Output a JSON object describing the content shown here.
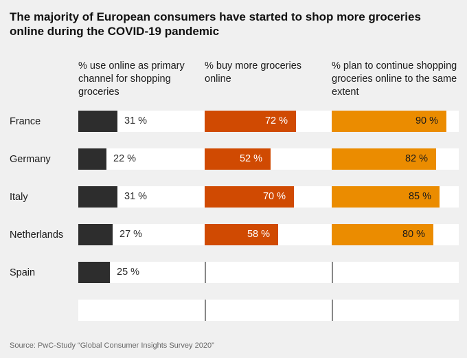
{
  "chart_data": {
    "type": "bar",
    "orientation": "horizontal",
    "title": "The majority of European consumers have started to shop more groceries online during the COVID-19 pandemic",
    "categories": [
      "France",
      "Germany",
      "Italy",
      "Netherlands",
      "Spain"
    ],
    "xlim": [
      0,
      100
    ],
    "series": [
      {
        "name": "% use online as primary channel for shopping groceries",
        "color": "#2d2d2d",
        "values": [
          31,
          22,
          31,
          27,
          25
        ],
        "labels": [
          "31 %",
          "22 %",
          "31 %",
          "27 %",
          "25 %"
        ]
      },
      {
        "name": "% buy more groceries online",
        "color": "#d04a02",
        "values": [
          72,
          52,
          70,
          58,
          null
        ],
        "labels": [
          "72 %",
          "52 %",
          "70 %",
          "58 %",
          ""
        ]
      },
      {
        "name": "% plan to continue shopping groceries online to the same extent",
        "color": "#eb8c00",
        "values": [
          90,
          82,
          85,
          80,
          null
        ],
        "labels": [
          "90 %",
          "82 %",
          "85 %",
          "80 %",
          ""
        ]
      }
    ],
    "source": "Source: PwC-Study “Global Consumer Insights Survey 2020”"
  }
}
